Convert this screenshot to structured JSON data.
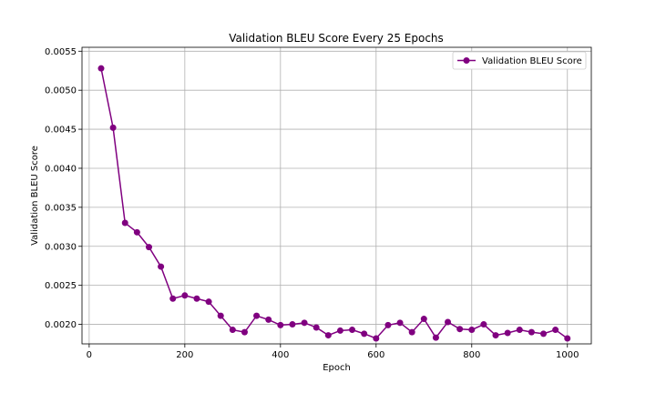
{
  "chart_data": {
    "type": "line",
    "title": "Validation BLEU Score Every 25 Epochs",
    "xlabel": "Epoch",
    "ylabel": "Validation BLEU Score",
    "xlim": [
      -15,
      1050
    ],
    "ylim": [
      0.00175,
      0.00555
    ],
    "xticks": [
      0,
      200,
      400,
      600,
      800,
      1000
    ],
    "yticks": [
      0.002,
      0.0025,
      0.003,
      0.0035,
      0.004,
      0.0045,
      0.005,
      0.0055
    ],
    "ytick_labels": [
      "0.0020",
      "0.0025",
      "0.0030",
      "0.0035",
      "0.0040",
      "0.0045",
      "0.0050",
      "0.0055"
    ],
    "grid": true,
    "legend_position": "top-right",
    "series": [
      {
        "name": "Validation BLEU Score",
        "color": "#800080",
        "marker": "circle",
        "x": [
          25,
          50,
          75,
          100,
          125,
          150,
          175,
          200,
          225,
          250,
          275,
          300,
          325,
          350,
          375,
          400,
          425,
          450,
          475,
          500,
          525,
          550,
          575,
          600,
          625,
          650,
          675,
          700,
          725,
          750,
          775,
          800,
          825,
          850,
          875,
          900,
          925,
          950,
          975,
          1000
        ],
        "y": [
          0.00528,
          0.00452,
          0.0033,
          0.00318,
          0.00299,
          0.00274,
          0.00233,
          0.00237,
          0.00233,
          0.00229,
          0.00211,
          0.00193,
          0.0019,
          0.00211,
          0.00206,
          0.00199,
          0.002,
          0.00202,
          0.00196,
          0.00186,
          0.00192,
          0.00193,
          0.00188,
          0.00182,
          0.00199,
          0.00202,
          0.0019,
          0.00207,
          0.00183,
          0.00203,
          0.00194,
          0.00193,
          0.002,
          0.00186,
          0.00189,
          0.00193,
          0.0019,
          0.00188,
          0.00193,
          0.00182
        ]
      }
    ]
  }
}
